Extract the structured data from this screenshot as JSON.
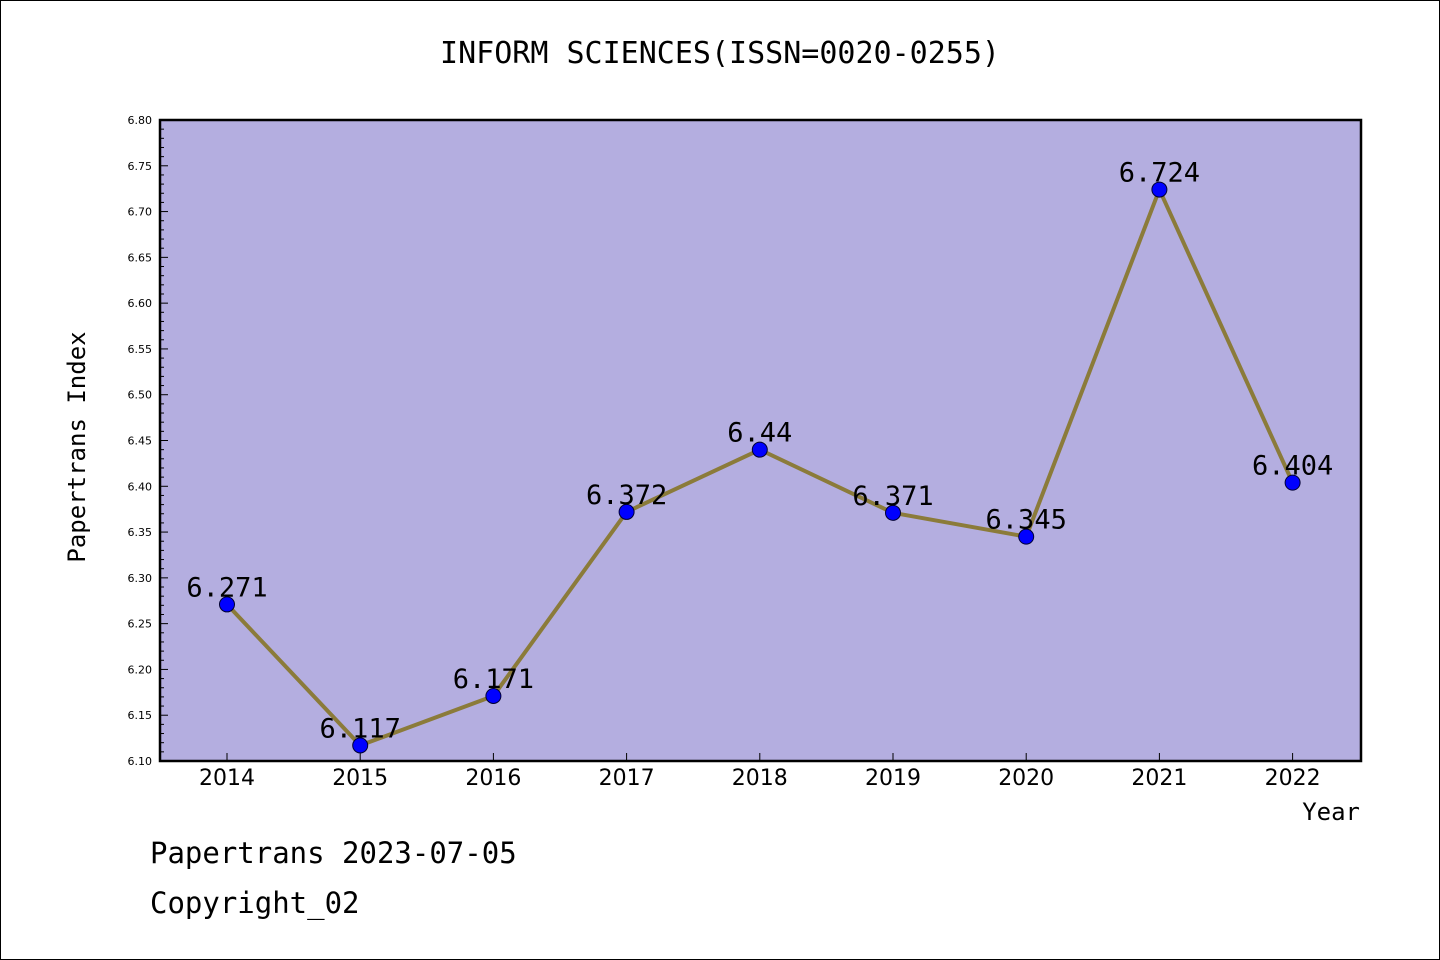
{
  "chart_data": {
    "type": "line",
    "title": "INFORM SCIENCES(ISSN=0020-0255)",
    "xlabel": "Year",
    "ylabel": "Papertrans Index",
    "categories": [
      "2014",
      "2015",
      "2016",
      "2017",
      "2018",
      "2019",
      "2020",
      "2021",
      "2022"
    ],
    "values": [
      6.271,
      6.117,
      6.171,
      6.372,
      6.44,
      6.371,
      6.345,
      6.724,
      6.404
    ],
    "data_labels": [
      "6.271",
      "6.117",
      "6.171",
      "6.372",
      "6.44",
      "6.371",
      "6.345",
      "6.724",
      "6.404"
    ],
    "ylim": [
      6.1,
      6.8
    ],
    "yticks": [
      "6.10",
      "6.15",
      "6.20",
      "6.25",
      "6.30",
      "6.35",
      "6.40",
      "6.45",
      "6.50",
      "6.55",
      "6.60",
      "6.65",
      "6.70",
      "6.75",
      "6.80"
    ],
    "grid": false,
    "colors": {
      "plot_background": "#b4aee0",
      "line": "#8b7b3a",
      "marker": "#0000ff"
    }
  },
  "footer": {
    "line1": "Papertrans 2023-07-05",
    "line2": "Copyright_02"
  }
}
